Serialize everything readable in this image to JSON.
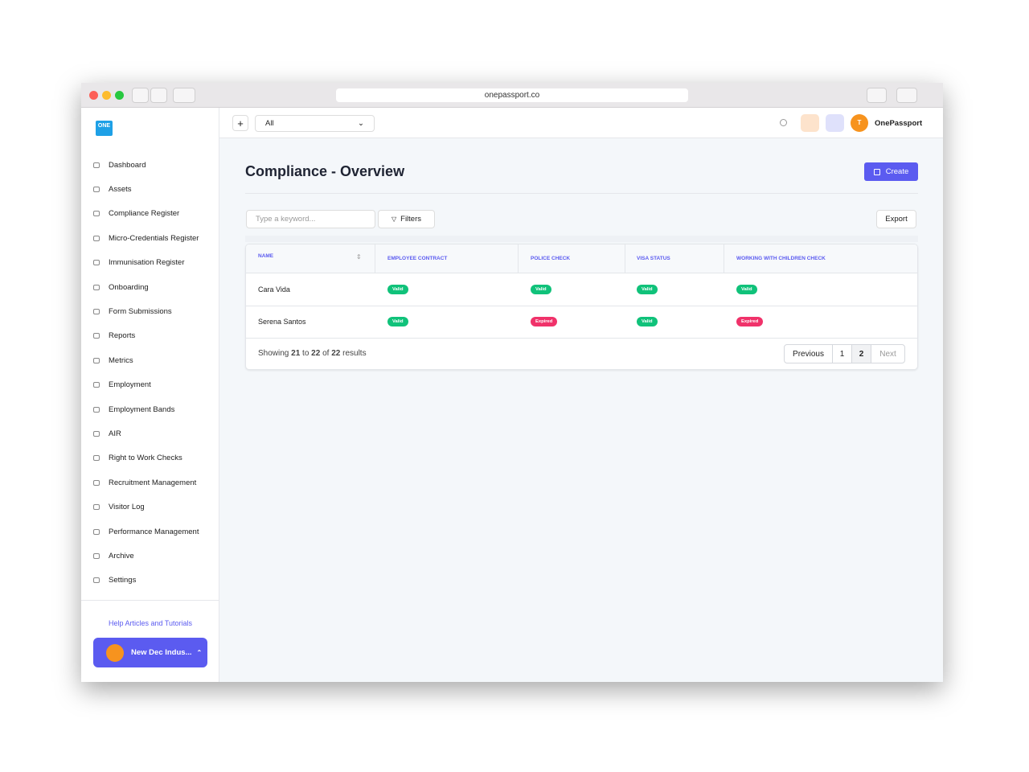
{
  "browser": {
    "url": "onepassport.co"
  },
  "topbar": {
    "logo": "ONE",
    "scope": "All",
    "avatar": "T",
    "account": "OnePassport"
  },
  "sidebar": {
    "items": [
      "Dashboard",
      "Assets",
      "Compliance Register",
      "Micro-Credentials Register",
      "Immunisation Register",
      "Onboarding",
      "Form Submissions",
      "Reports",
      "Metrics",
      "Employment",
      "Employment Bands",
      "AIR",
      "Right to Work Checks",
      "Recruitment Management",
      "Visitor Log",
      "Performance Management",
      "Archive",
      "Settings"
    ],
    "help": "Help Articles and Tutorials",
    "organisation": "New Dec Indus..."
  },
  "header": {
    "title": "Compliance - Overview",
    "create": "Create"
  },
  "toolbar": {
    "search_placeholder": "Type a keyword...",
    "filters": "Filters",
    "export": "Export"
  },
  "table": {
    "columns": [
      "NAME",
      "EMPLOYEE CONTRACT",
      "POLICE CHECK",
      "VISA STATUS",
      "WORKING WITH CHILDREN CHECK"
    ],
    "rows": [
      [
        "Cara Vida",
        "Valid",
        "Valid",
        "Valid",
        "Valid"
      ],
      [
        "Serena Santos",
        "Valid",
        "Expired",
        "Valid",
        "Expired"
      ]
    ]
  },
  "footer": {
    "showing": "Showing",
    "from": "21",
    "to_word": "to",
    "to": "22",
    "of_word": "of",
    "total": "22",
    "results": "results"
  },
  "pagination": {
    "previous": "Previous",
    "pages": [
      "1",
      "2"
    ],
    "next": "Next"
  }
}
